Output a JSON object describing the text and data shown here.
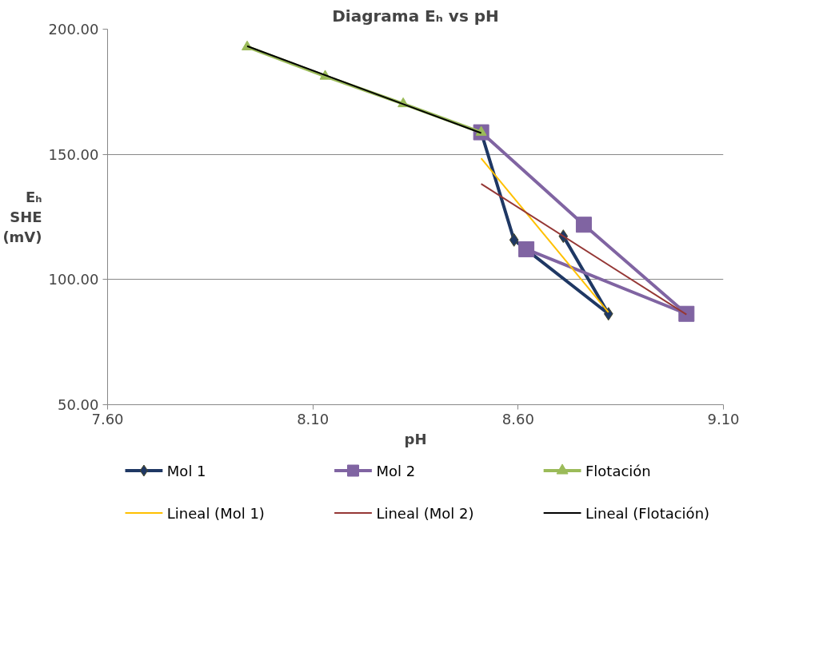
{
  "chart_data": {
    "type": "line",
    "title": "Diagrama Eₕ vs pH",
    "xlabel": "pH",
    "ylabel": "Eₕ\nSHE\n(mV)",
    "xlim": [
      7.6,
      9.1
    ],
    "xticks": [
      {
        "value": 7.6,
        "label": "7.60"
      },
      {
        "value": 8.1,
        "label": "8.10"
      },
      {
        "value": 8.6,
        "label": "8.60"
      },
      {
        "value": 9.1,
        "label": "9.10"
      }
    ],
    "ylim": [
      50,
      200
    ],
    "yticks": [
      {
        "value": 50,
        "label": "50.00"
      },
      {
        "value": 100,
        "label": "100.00"
      },
      {
        "value": 150,
        "label": "150.00"
      },
      {
        "value": 200,
        "label": "200.00"
      }
    ],
    "grid": "y",
    "legend": "bottom",
    "series": [
      {
        "name": "Mol 1",
        "color": "#1f3864",
        "marker": "diamond",
        "x": [
          8.51,
          8.59,
          8.82,
          8.71
        ],
        "values": [
          158.8,
          115.8,
          86.3,
          117.3
        ]
      },
      {
        "name": "Mol 2",
        "color": "#8064a2",
        "marker": "square",
        "x": [
          8.51,
          8.76,
          9.01,
          8.62
        ],
        "values": [
          158.8,
          121.9,
          86.3,
          112.1
        ]
      },
      {
        "name": "Flotación",
        "color": "#9bbb59",
        "marker": "triangle",
        "x": [
          7.94,
          8.13,
          8.32,
          8.51
        ],
        "values": [
          192.9,
          181.2,
          170.2,
          158.8
        ]
      },
      {
        "name": "Lineal (Mol 1)",
        "color": "#ffc000",
        "marker": "none",
        "x": [
          8.51,
          8.82
        ],
        "values": [
          148.4,
          86.9
        ]
      },
      {
        "name": "Lineal (Mol 2)",
        "color": "#953735",
        "marker": "none",
        "x": [
          8.51,
          9.01
        ],
        "values": [
          138.2,
          86.0
        ]
      },
      {
        "name": "Lineal (Flotación)",
        "color": "#000000",
        "marker": "none",
        "x": [
          7.94,
          8.51
        ],
        "values": [
          193.2,
          158.5
        ]
      }
    ]
  }
}
